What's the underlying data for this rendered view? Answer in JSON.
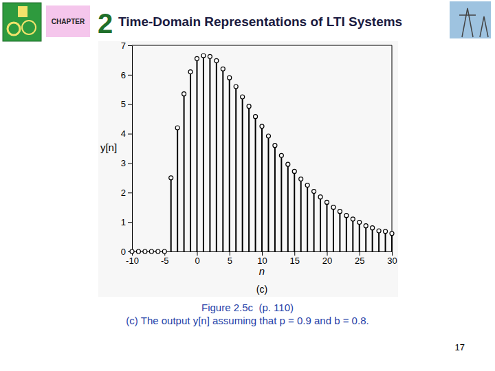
{
  "chart_data": {
    "type": "stem",
    "x": [
      -10,
      -9,
      -8,
      -7,
      -6,
      -5,
      -4,
      -3,
      -2,
      -1,
      0,
      1,
      2,
      3,
      4,
      5,
      6,
      7,
      8,
      9,
      10,
      11,
      12,
      13,
      14,
      15,
      16,
      17,
      18,
      19,
      20,
      21,
      22,
      23,
      24,
      25,
      26,
      27,
      28,
      29,
      30
    ],
    "values": [
      0,
      0,
      0,
      0,
      0,
      0,
      2.5,
      4.2,
      5.35,
      6.1,
      6.55,
      6.65,
      6.62,
      6.48,
      6.2,
      5.9,
      5.6,
      5.25,
      4.93,
      4.58,
      4.25,
      3.92,
      3.6,
      3.26,
      2.96,
      2.72,
      2.46,
      2.25,
      2.04,
      1.85,
      1.67,
      1.5,
      1.36,
      1.22,
      1.1,
      0.99,
      0.87,
      0.8,
      0.7,
      0.68,
      0.61
    ],
    "xlim": [
      -10,
      30
    ],
    "ylim": [
      0,
      7
    ],
    "xticks": [
      -10,
      -5,
      0,
      5,
      10,
      15,
      20,
      25,
      30
    ],
    "yticks": [
      0,
      1,
      2,
      3,
      4,
      5,
      6,
      7
    ],
    "x_label": "n",
    "y_label": "y[n]",
    "annotation": "(c)",
    "color": "#000000",
    "marker": "circle",
    "grid": false
  },
  "slide": {
    "chapter_label": "CHAPTER",
    "chapter_number": "2",
    "heading": "Time-Domain Representations of LTI Systems",
    "caption_title": "Figure 2.5c  (p. 110)",
    "caption_text": "(c) The output y[n] assuming that p = 0.9 and b = 0.8.",
    "page_number": "17"
  }
}
